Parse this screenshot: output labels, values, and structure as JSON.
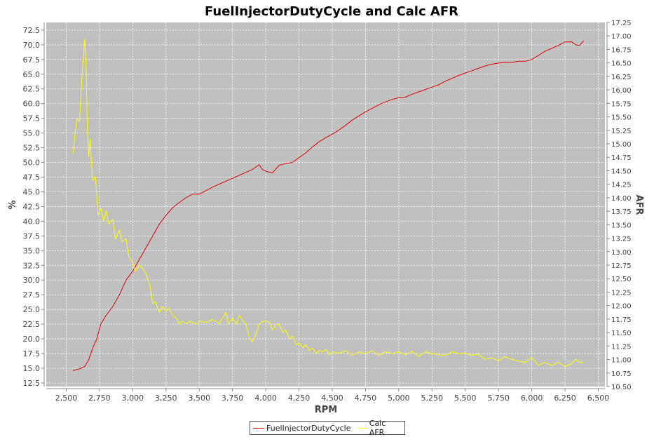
{
  "chart_data": {
    "type": "line",
    "title": "FuelInjectorDutyCycle and Calc AFR",
    "xlabel": "RPM",
    "ylabel_left": "%",
    "ylabel_right": "AFR",
    "xlim": [
      2350,
      6550
    ],
    "ylim_left": [
      11.9,
      73.8
    ],
    "ylim_right": [
      10.5,
      17.25
    ],
    "x_ticks": [
      "2,500",
      "2,750",
      "3,000",
      "3,250",
      "3,500",
      "3,750",
      "4,000",
      "4,250",
      "4,500",
      "4,750",
      "5,000",
      "5,250",
      "5,500",
      "5,750",
      "6,000",
      "6,250",
      "6,500"
    ],
    "y_left_ticks": [
      "12.5",
      "15.0",
      "17.5",
      "20.0",
      "22.5",
      "25.0",
      "27.5",
      "30.0",
      "32.5",
      "35.0",
      "37.5",
      "40.0",
      "42.5",
      "45.0",
      "47.5",
      "50.0",
      "52.5",
      "55.0",
      "57.5",
      "60.0",
      "62.5",
      "65.0",
      "67.5",
      "70.0",
      "72.5"
    ],
    "y_right_ticks": [
      "10.50",
      "10.75",
      "11.00",
      "11.25",
      "11.50",
      "11.75",
      "12.00",
      "12.25",
      "12.50",
      "12.75",
      "13.00",
      "13.25",
      "13.50",
      "13.75",
      "14.00",
      "14.25",
      "14.50",
      "14.75",
      "15.00",
      "15.25",
      "15.50",
      "15.75",
      "16.00",
      "16.25",
      "16.50",
      "16.75",
      "17.00",
      "17.25"
    ],
    "grid": true,
    "legend_position": "bottom",
    "series": [
      {
        "name": "FuelInjectorDutyCycle",
        "color": "#e00000",
        "axis": "left",
        "x": [
          2550,
          2600,
          2640,
          2670,
          2700,
          2730,
          2760,
          2800,
          2850,
          2900,
          2950,
          3000,
          3050,
          3100,
          3150,
          3200,
          3250,
          3300,
          3350,
          3400,
          3450,
          3500,
          3550,
          3600,
          3650,
          3700,
          3750,
          3800,
          3850,
          3900,
          3950,
          3975,
          4000,
          4050,
          4100,
          4150,
          4200,
          4250,
          4300,
          4350,
          4400,
          4450,
          4500,
          4550,
          4600,
          4650,
          4700,
          4750,
          4800,
          4850,
          4900,
          4950,
          5000,
          5050,
          5100,
          5150,
          5200,
          5250,
          5300,
          5350,
          5400,
          5450,
          5500,
          5550,
          5600,
          5650,
          5700,
          5750,
          5800,
          5850,
          5900,
          5950,
          6000,
          6050,
          6100,
          6150,
          6200,
          6250,
          6300,
          6330,
          6360,
          6390
        ],
        "y": [
          14.6,
          14.9,
          15.3,
          16.5,
          18.5,
          20.0,
          22.5,
          24.0,
          25.5,
          27.5,
          30.0,
          31.5,
          33.5,
          35.5,
          37.5,
          39.5,
          41.0,
          42.3,
          43.2,
          44.0,
          44.6,
          44.6,
          45.2,
          45.8,
          46.3,
          46.8,
          47.3,
          47.8,
          48.3,
          48.8,
          49.6,
          48.8,
          48.5,
          48.2,
          49.5,
          49.8,
          50.0,
          50.8,
          51.6,
          52.6,
          53.5,
          54.2,
          54.8,
          55.5,
          56.3,
          57.2,
          57.9,
          58.6,
          59.2,
          59.8,
          60.3,
          60.7,
          61.0,
          61.1,
          61.6,
          62.0,
          62.4,
          62.8,
          63.2,
          63.8,
          64.3,
          64.8,
          65.2,
          65.6,
          66.0,
          66.4,
          66.7,
          66.9,
          67.0,
          67.0,
          67.2,
          67.2,
          67.5,
          68.2,
          68.9,
          69.4,
          69.9,
          70.5,
          70.5,
          70.0,
          69.9,
          70.7
        ]
      },
      {
        "name": "Calc AFR",
        "color": "#ffff00",
        "axis": "left",
        "x": [
          2550,
          2580,
          2600,
          2620,
          2640,
          2650,
          2660,
          2670,
          2680,
          2690,
          2700,
          2720,
          2740,
          2760,
          2780,
          2800,
          2820,
          2850,
          2870,
          2900,
          2920,
          2950,
          2970,
          3000,
          3020,
          3050,
          3080,
          3100,
          3130,
          3150,
          3170,
          3200,
          3220,
          3250,
          3270,
          3300,
          3330,
          3350,
          3370,
          3400,
          3430,
          3450,
          3480,
          3500,
          3550,
          3600,
          3650,
          3700,
          3720,
          3750,
          3780,
          3800,
          3830,
          3850,
          3880,
          3900,
          3930,
          3950,
          3980,
          4000,
          4030,
          4050,
          4080,
          4100,
          4130,
          4150,
          4180,
          4200,
          4230,
          4250,
          4280,
          4300,
          4330,
          4350,
          4380,
          4400,
          4430,
          4450,
          4480,
          4500,
          4550,
          4600,
          4650,
          4700,
          4750,
          4800,
          4850,
          4900,
          4950,
          5000,
          5050,
          5100,
          5150,
          5200,
          5250,
          5300,
          5350,
          5400,
          5450,
          5500,
          5550,
          5600,
          5650,
          5700,
          5750,
          5800,
          5850,
          5900,
          5950,
          6000,
          6050,
          6100,
          6150,
          6200,
          6250,
          6300,
          6330,
          6360,
          6390
        ],
        "y": [
          51.5,
          57.5,
          57.0,
          65.0,
          71.0,
          66.0,
          55.0,
          51.0,
          54.0,
          50.0,
          47.0,
          47.5,
          41.0,
          42.3,
          40.0,
          41.8,
          39.5,
          40.3,
          37.0,
          38.5,
          36.5,
          37.0,
          34.0,
          33.0,
          31.5,
          32.5,
          31.8,
          31.0,
          29.0,
          26.0,
          26.3,
          24.5,
          25.5,
          24.8,
          25.2,
          24.0,
          23.5,
          22.5,
          23.0,
          22.6,
          23.0,
          22.8,
          22.5,
          23.0,
          22.8,
          23.3,
          22.6,
          24.5,
          22.5,
          23.5,
          22.5,
          24.0,
          23.0,
          22.5,
          20.0,
          19.5,
          21.0,
          22.5,
          23.0,
          23.0,
          22.8,
          21.5,
          22.5,
          22.5,
          21.0,
          21.5,
          20.0,
          20.5,
          19.0,
          19.3,
          18.5,
          19.0,
          18.0,
          18.5,
          17.5,
          18.0,
          17.8,
          18.2,
          17.3,
          17.8,
          17.5,
          18.0,
          17.2,
          17.8,
          17.5,
          18.0,
          17.2,
          17.8,
          17.5,
          17.8,
          17.3,
          17.9,
          17.0,
          17.8,
          17.5,
          17.3,
          17.2,
          17.8,
          17.5,
          17.6,
          17.2,
          17.4,
          16.5,
          16.8,
          16.2,
          17.0,
          16.5,
          16.2,
          16.0,
          16.8,
          15.5,
          16.0,
          15.5,
          16.0,
          15.3,
          15.8,
          16.5,
          16.0,
          16.0
        ]
      }
    ]
  }
}
